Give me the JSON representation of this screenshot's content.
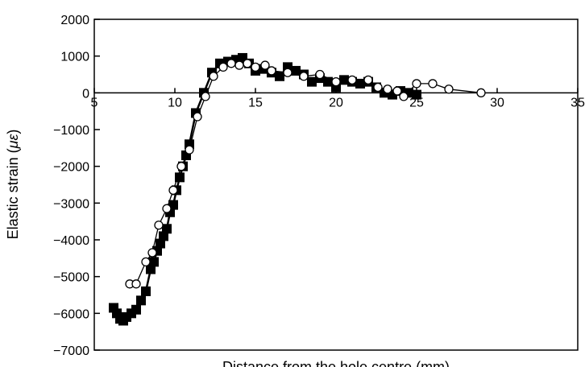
{
  "chart_data": {
    "type": "line",
    "title": "",
    "xlabel": "Distance from the hole centre (mm)",
    "ylabel": "Elastic strain (",
    "ylabel_symbol": "με",
    "ylabel_suffix": ")",
    "xlim": [
      5,
      35
    ],
    "ylim": [
      -7000,
      2000
    ],
    "x_ticks": [
      5,
      10,
      15,
      20,
      25,
      30,
      35
    ],
    "y_ticks": [
      2000,
      1000,
      0,
      -1000,
      -2000,
      -3000,
      -4000,
      -5000,
      -6000,
      -7000
    ],
    "x_tick_labels": [
      "5",
      "10",
      "15",
      "20",
      "25",
      "30",
      "35"
    ],
    "y_tick_labels": [
      "2000",
      "1000",
      "0",
      "−1000",
      "−2000",
      "−3000",
      "−4000",
      "−5000",
      "−6000",
      "−7000"
    ],
    "grid": false,
    "x_axis_at_y": 0,
    "series": [
      {
        "marker": "filled-square",
        "color": "#000000",
        "x": [
          6.2,
          6.4,
          6.6,
          6.8,
          7.0,
          7.3,
          7.6,
          7.9,
          8.2,
          8.5,
          8.7,
          8.9,
          9.1,
          9.3,
          9.5,
          9.7,
          9.9,
          10.1,
          10.3,
          10.5,
          10.7,
          10.9,
          11.3,
          11.8,
          12.3,
          12.8,
          13.3,
          13.8,
          14.2,
          14.6,
          15.0,
          15.5,
          16.0,
          16.5,
          17.0,
          17.5,
          18.0,
          18.5,
          19.0,
          19.5,
          20.0,
          20.5,
          21.0,
          21.5,
          22.0,
          22.5,
          23.0,
          23.5,
          24.0,
          24.5,
          25.0
        ],
        "y": [
          -5850,
          -6000,
          -6150,
          -6200,
          -6100,
          -6000,
          -5900,
          -5650,
          -5400,
          -4800,
          -4600,
          -4300,
          -4100,
          -3900,
          -3700,
          -3250,
          -3050,
          -2650,
          -2300,
          -2000,
          -1700,
          -1400,
          -550,
          0,
          550,
          800,
          850,
          900,
          950,
          800,
          600,
          650,
          550,
          450,
          700,
          600,
          500,
          300,
          400,
          300,
          150,
          350,
          300,
          250,
          300,
          150,
          0,
          -50,
          50,
          0,
          -50
        ]
      },
      {
        "marker": "open-circle",
        "color": "#000000",
        "x": [
          7.2,
          7.6,
          8.2,
          8.6,
          9.0,
          9.5,
          9.9,
          10.4,
          10.9,
          11.4,
          11.9,
          12.4,
          13.0,
          13.5,
          14.0,
          14.5,
          15.0,
          15.6,
          16.0,
          17.0,
          18.0,
          19.0,
          20.0,
          21.0,
          22.0,
          22.6,
          23.2,
          23.8,
          24.2,
          25.0,
          26.0,
          27.0,
          29.0
        ],
        "y": [
          -5200,
          -5200,
          -4600,
          -4350,
          -3600,
          -3150,
          -2650,
          -2000,
          -1550,
          -650,
          -100,
          450,
          700,
          800,
          750,
          800,
          700,
          750,
          600,
          550,
          450,
          500,
          300,
          350,
          350,
          150,
          100,
          50,
          -100,
          250,
          250,
          100,
          0
        ]
      }
    ]
  }
}
